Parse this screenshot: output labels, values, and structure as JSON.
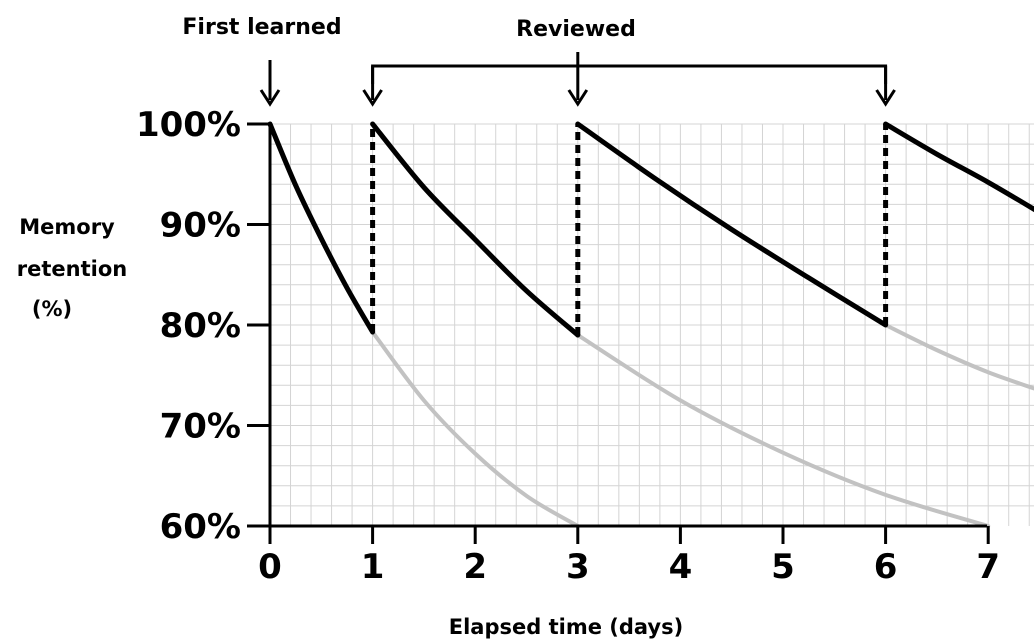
{
  "chart_data": {
    "type": "line",
    "title": "",
    "xlabel": "Elapsed time (days)",
    "ylabel_lines": [
      "Memory",
      "retention",
      "(%)"
    ],
    "x_ticks": [
      "0",
      "1",
      "2",
      "3",
      "4",
      "5",
      "6",
      "7"
    ],
    "y_ticks": [
      "60%",
      "70%",
      "80%",
      "90%",
      "100%"
    ],
    "xlim": [
      0,
      7.5
    ],
    "ylim": [
      60,
      100
    ],
    "grid": true,
    "annotations": {
      "first_learned": "First learned",
      "reviewed": "Reviewed"
    },
    "review_points": [
      1,
      3,
      6
    ],
    "series": [
      {
        "style": "black",
        "x": [
          0,
          0.25,
          0.5,
          0.75,
          1
        ],
        "y": [
          100,
          93.9,
          88.6,
          83.7,
          79.3
        ]
      },
      {
        "style": "black",
        "x": [
          1,
          1.5,
          2,
          2.5,
          3
        ],
        "y": [
          100,
          93.7,
          88.5,
          83.4,
          79
        ]
      },
      {
        "style": "black",
        "x": [
          3,
          3.75,
          4.5,
          5.25,
          6
        ],
        "y": [
          100,
          94.6,
          89.5,
          84.7,
          80
        ]
      },
      {
        "style": "black",
        "x": [
          6,
          6.5,
          7,
          7.5
        ],
        "y": [
          100,
          97,
          94.2,
          91.2
        ]
      },
      {
        "style": "gray",
        "x": [
          1,
          1.5,
          2,
          2.5,
          3
        ],
        "y": [
          79.3,
          72.5,
          67.2,
          63,
          60
        ]
      },
      {
        "style": "gray",
        "x": [
          3,
          4,
          5,
          6,
          7
        ],
        "y": [
          79,
          72.5,
          67.3,
          63.1,
          60
        ]
      },
      {
        "style": "gray",
        "x": [
          6,
          6.5,
          7,
          7.5
        ],
        "y": [
          80,
          77.5,
          75.3,
          73.5
        ]
      }
    ],
    "review_jumps": [
      {
        "x": 1,
        "from": 79.3,
        "to": 100
      },
      {
        "x": 3,
        "from": 79,
        "to": 100
      },
      {
        "x": 6,
        "from": 80,
        "to": 100
      }
    ]
  }
}
